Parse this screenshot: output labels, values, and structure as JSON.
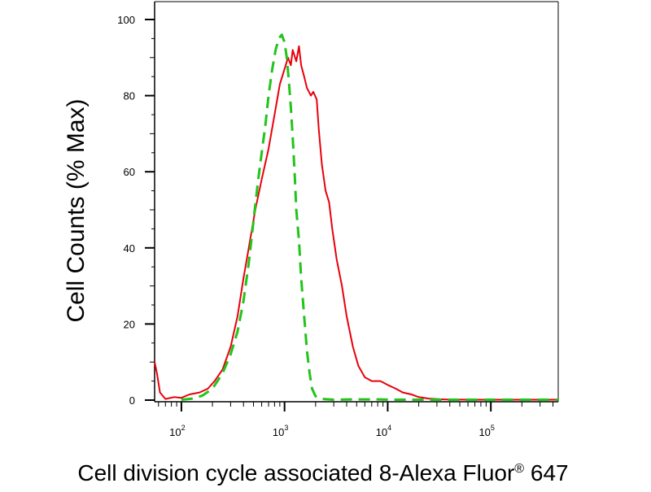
{
  "chart_data": {
    "type": "line",
    "title": "",
    "xlabel": {
      "main": "Cell division cycle associated 8-Alexa Fluor",
      "registered_mark": "®",
      "suffix": " 647"
    },
    "ylabel": "Cell Counts (% Max)",
    "x_scale": "log",
    "xlim": [
      55,
      450000
    ],
    "ylim": [
      0,
      100
    ],
    "y_ticks": [
      0,
      20,
      40,
      60,
      80,
      100
    ],
    "x_ticks": [
      {
        "base": "10",
        "exp": "2",
        "value": 100
      },
      {
        "base": "10",
        "exp": "3",
        "value": 1000
      },
      {
        "base": "10",
        "exp": "4",
        "value": 10000
      },
      {
        "base": "10",
        "exp": "5",
        "value": 100000
      }
    ],
    "grid": false,
    "legend": "none",
    "series": [
      {
        "color": "#e8000b",
        "style": "solid",
        "points": [
          [
            55,
            10
          ],
          [
            58,
            7
          ],
          [
            62,
            2
          ],
          [
            70,
            0.3
          ],
          [
            85,
            0.8
          ],
          [
            100,
            0.6
          ],
          [
            120,
            1.5
          ],
          [
            150,
            2
          ],
          [
            180,
            3
          ],
          [
            210,
            5
          ],
          [
            250,
            8
          ],
          [
            300,
            14
          ],
          [
            350,
            22
          ],
          [
            400,
            32
          ],
          [
            450,
            40
          ],
          [
            520,
            50
          ],
          [
            600,
            58
          ],
          [
            700,
            66
          ],
          [
            800,
            75
          ],
          [
            900,
            83
          ],
          [
            1000,
            87
          ],
          [
            1080,
            90
          ],
          [
            1150,
            88
          ],
          [
            1200,
            92
          ],
          [
            1300,
            89
          ],
          [
            1380,
            93
          ],
          [
            1450,
            88
          ],
          [
            1550,
            85
          ],
          [
            1650,
            82
          ],
          [
            1800,
            80
          ],
          [
            1900,
            81
          ],
          [
            2050,
            79
          ],
          [
            2150,
            71
          ],
          [
            2300,
            62
          ],
          [
            2500,
            55
          ],
          [
            2700,
            52
          ],
          [
            2900,
            45
          ],
          [
            3200,
            37
          ],
          [
            3600,
            30
          ],
          [
            4000,
            22
          ],
          [
            4600,
            14
          ],
          [
            5200,
            9
          ],
          [
            6000,
            6
          ],
          [
            7000,
            5
          ],
          [
            8500,
            5
          ],
          [
            10000,
            4
          ],
          [
            12000,
            3
          ],
          [
            14000,
            2
          ],
          [
            17000,
            1.5
          ],
          [
            20000,
            0.8
          ],
          [
            25000,
            0.4
          ],
          [
            35000,
            0.2
          ],
          [
            60000,
            0.1
          ],
          [
            120000,
            0.1
          ],
          [
            250000,
            0.1
          ],
          [
            450000,
            0.1
          ]
        ]
      },
      {
        "color": "#22c41a",
        "style": "dashed",
        "points": [
          [
            100,
            0.1
          ],
          [
            130,
            0.4
          ],
          [
            160,
            1.2
          ],
          [
            200,
            3
          ],
          [
            250,
            7
          ],
          [
            300,
            12
          ],
          [
            350,
            18
          ],
          [
            400,
            26
          ],
          [
            450,
            36
          ],
          [
            500,
            47
          ],
          [
            550,
            57
          ],
          [
            600,
            65
          ],
          [
            650,
            72
          ],
          [
            700,
            80
          ],
          [
            760,
            87
          ],
          [
            820,
            92
          ],
          [
            880,
            95
          ],
          [
            940,
            96
          ],
          [
            1000,
            94
          ],
          [
            1050,
            90
          ],
          [
            1100,
            84
          ],
          [
            1150,
            77
          ],
          [
            1200,
            69
          ],
          [
            1250,
            60
          ],
          [
            1300,
            50
          ],
          [
            1380,
            42
          ],
          [
            1450,
            32
          ],
          [
            1550,
            22
          ],
          [
            1650,
            13
          ],
          [
            1750,
            7
          ],
          [
            1850,
            3
          ],
          [
            2000,
            1
          ],
          [
            2300,
            0.3
          ],
          [
            3000,
            0.1
          ],
          [
            5000,
            0.2
          ],
          [
            8000,
            0.2
          ],
          [
            12000,
            0.1
          ],
          [
            30000,
            0.1
          ],
          [
            100000,
            0.1
          ],
          [
            450000,
            0.1
          ]
        ]
      }
    ]
  }
}
